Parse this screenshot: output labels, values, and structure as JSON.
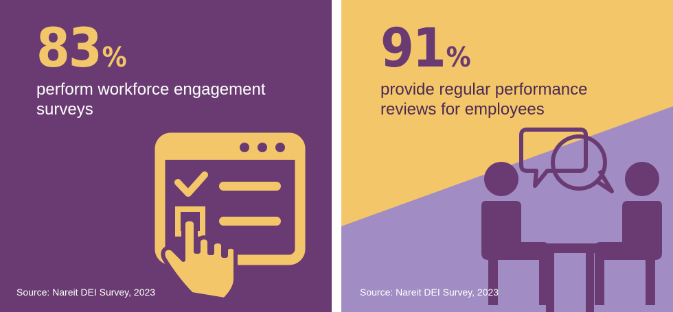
{
  "left_panel": {
    "percent_value": "83",
    "percent_sign": "%",
    "description": "perform workforce engagement surveys",
    "source": "Source: Nareit DEI Survey, 2023",
    "icon": "survey-form-click-icon"
  },
  "right_panel": {
    "percent_value": "91",
    "percent_sign": "%",
    "description": "provide regular performance reviews for employees",
    "source": "Source: Nareit DEI Survey, 2023",
    "icon": "two-people-meeting-conversation-icon"
  },
  "colors": {
    "purple": "#6a3b72",
    "yellow": "#f4c66a",
    "lavender": "#a18cc4"
  }
}
